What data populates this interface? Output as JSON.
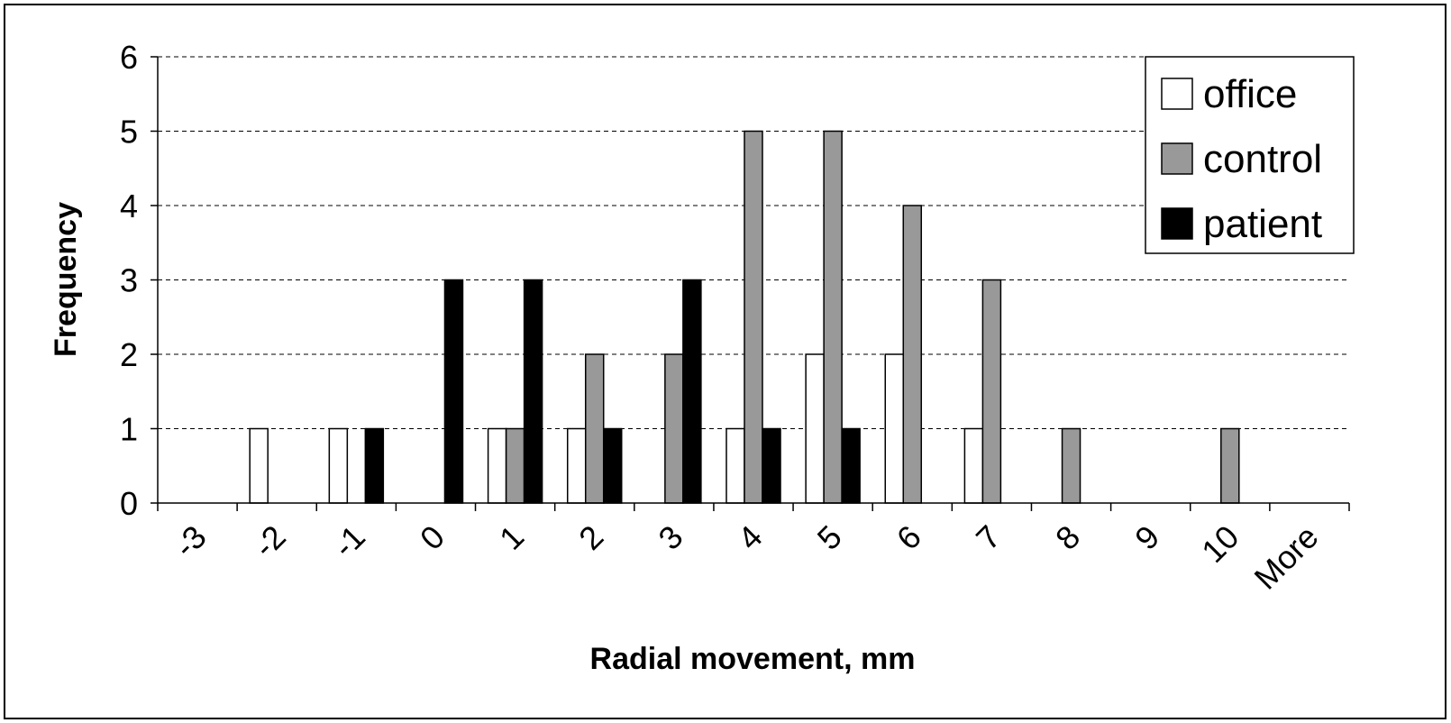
{
  "chart_data": {
    "type": "bar",
    "title": "",
    "xlabel": "Radial movement, mm",
    "ylabel": "Frequency",
    "categories": [
      "-3",
      "-2",
      "-1",
      "0",
      "1",
      "2",
      "3",
      "4",
      "5",
      "6",
      "7",
      "8",
      "9",
      "10",
      "More"
    ],
    "yticks": [
      "0",
      "1",
      "2",
      "3",
      "4",
      "5",
      "6"
    ],
    "ylim": [
      0,
      6
    ],
    "grid": "horizontal dashed",
    "legend_position": "top-right",
    "series": [
      {
        "name": "office",
        "color": "#ffffff",
        "values": [
          0,
          1,
          1,
          0,
          1,
          1,
          0,
          1,
          2,
          2,
          1,
          0,
          0,
          0,
          0
        ]
      },
      {
        "name": "control",
        "color": "#999999",
        "values": [
          0,
          0,
          0,
          0,
          1,
          2,
          2,
          5,
          5,
          4,
          3,
          1,
          0,
          1,
          0
        ]
      },
      {
        "name": "patient",
        "color": "#000000",
        "values": [
          0,
          0,
          1,
          3,
          3,
          1,
          3,
          1,
          1,
          0,
          0,
          0,
          0,
          0,
          0
        ]
      }
    ]
  }
}
